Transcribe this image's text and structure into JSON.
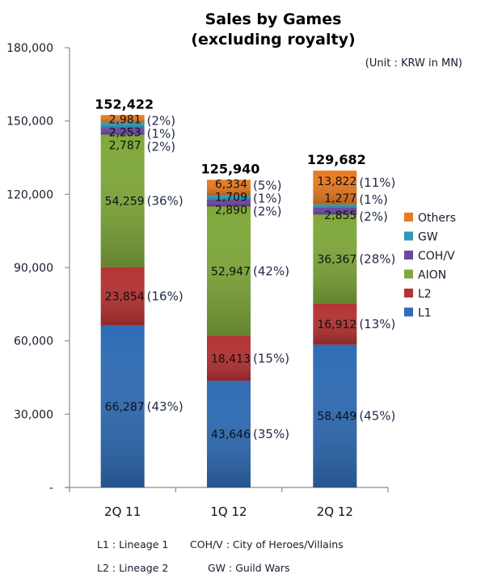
{
  "chart_data": {
    "type": "bar",
    "stacked": true,
    "title": "Sales by Games",
    "subtitle": "(excluding royalty)",
    "unit_label": "(Unit : KRW in MN)",
    "xlabel": "",
    "ylabel": "",
    "ylim": [
      0,
      180000
    ],
    "yticks": [
      0,
      30000,
      60000,
      90000,
      120000,
      150000,
      180000
    ],
    "ytick_labels": [
      "-",
      "30,000",
      "60,000",
      "90,000",
      "120,000",
      "150,000",
      "180,000"
    ],
    "grid": false,
    "legend_position": "right",
    "categories": [
      "2Q 11",
      "1Q 12",
      "2Q 12"
    ],
    "totals": [
      152422,
      125940,
      129682
    ],
    "total_labels": [
      "152,422",
      "125,940",
      "129,682"
    ],
    "series": [
      {
        "name": "L1",
        "color": "#2f6cb5",
        "values": [
          66287,
          43646,
          58449
        ],
        "value_labels": [
          "66,287",
          "43,646",
          "58,449"
        ],
        "pct_labels": [
          "(43%)",
          "(35%)",
          "(45%)"
        ]
      },
      {
        "name": "L2",
        "color": "#b53233",
        "values": [
          23854,
          18413,
          16912
        ],
        "value_labels": [
          "23,854",
          "18,413",
          "16,912"
        ],
        "pct_labels": [
          "(16%)",
          "(15%)",
          "(13%)"
        ]
      },
      {
        "name": "AION",
        "color": "#7fa83a",
        "values": [
          54259,
          52947,
          36367
        ],
        "value_labels": [
          "54,259",
          "52,947",
          "36,367"
        ],
        "pct_labels": [
          "(36%)",
          "(42%)",
          "(28%)"
        ]
      },
      {
        "name": "COH/V",
        "color": "#6a47a0",
        "values": [
          2787,
          2890,
          2855
        ],
        "value_labels": [
          "2,787",
          "2,890",
          "2,855"
        ],
        "pct_labels": [
          "(2%)",
          "(2%)",
          "(2%)"
        ]
      },
      {
        "name": "GW",
        "color": "#2b9ab8",
        "values": [
          2253,
          1709,
          1277
        ],
        "value_labels": [
          "2,253",
          "1,709",
          "1,277"
        ],
        "pct_labels": [
          "(1%)",
          "(1%)",
          "(1%)"
        ]
      },
      {
        "name": "Others",
        "color": "#e87a22",
        "values": [
          2981,
          6334,
          13822
        ],
        "value_labels": [
          "2,981",
          "6,334",
          "13,822"
        ],
        "pct_labels": [
          "(2%)",
          "(5%)",
          "(11%)"
        ]
      }
    ],
    "legend_order": [
      "Others",
      "GW",
      "COH/V",
      "AION",
      "L2",
      "L1"
    ],
    "footnotes": [
      "L1 : Lineage 1",
      "COH/V : City of Heroes/Villains",
      "L2 : Lineage 2",
      "GW : Guild Wars"
    ]
  }
}
